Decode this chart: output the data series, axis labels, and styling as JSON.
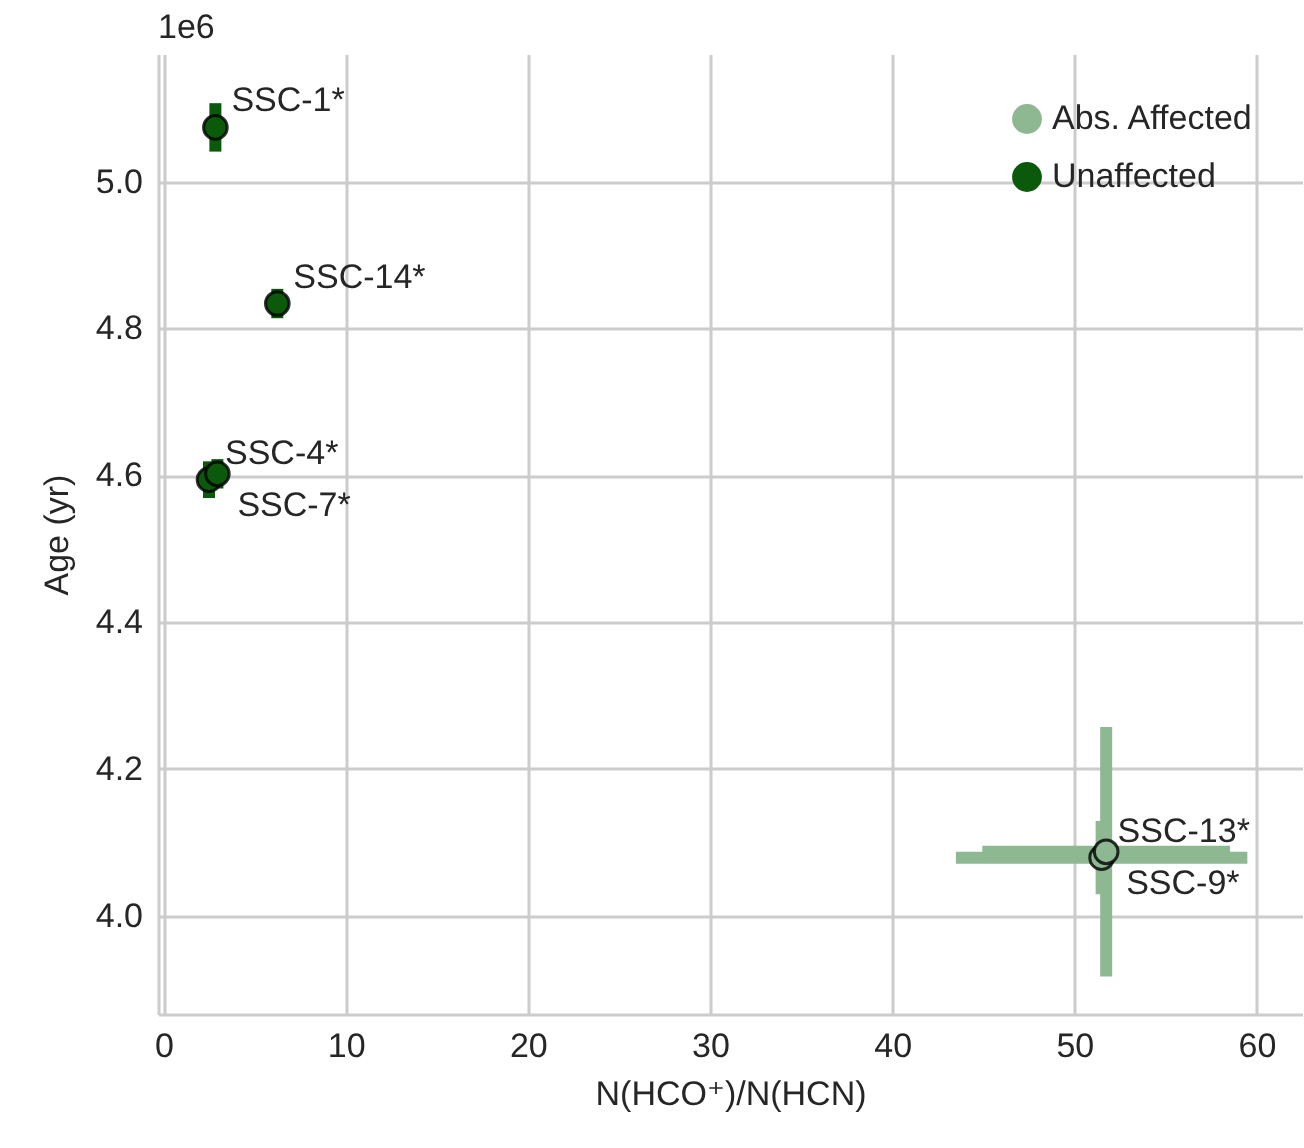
{
  "chart_data": {
    "type": "scatter",
    "xlabel": "N(HCO⁺)/N(HCN)",
    "ylabel": "Age (yr)",
    "xlim": [
      -0.3,
      62.5
    ],
    "ylim": [
      3.866,
      5.174
    ],
    "xticks": [
      0,
      10,
      20,
      30,
      40,
      50,
      60
    ],
    "yticks": [
      {
        "value": 4,
        "label": "4.0"
      },
      4.2,
      4.4,
      4.6,
      4.8,
      {
        "value": 5,
        "label": "5.0"
      }
    ],
    "grid": true,
    "legend": "top right",
    "marker": "circle",
    "series": [
      {
        "name": "Abs. Affected",
        "color": "#8db891",
        "x": [
          51.5,
          51.75
        ],
        "values": [
          4.079,
          4.087
        ],
        "errors": [
          0.05,
          0.17
        ],
        "xerrors": [
          8,
          6.8
        ]
      },
      {
        "name": "Unaffected",
        "color": "#0b5a0b",
        "x": [
          2.85,
          6.25,
          2.5,
          2.96
        ],
        "values": [
          5.074,
          4.834,
          4.594,
          4.602
        ],
        "errors": [
          0.033,
          0.02,
          0.025,
          0.02
        ]
      }
    ],
    "annotations": [
      "1e6",
      {
        "text": "SSC-1*",
        "x": 2.85,
        "y": 5.074
      },
      {
        "text": "SSC-14*",
        "x": 6.25,
        "y": 4.834
      },
      {
        "text": "SSC-4*",
        "x": 2.5,
        "y": 4.594
      },
      {
        "text": "SSC-7*",
        "x": 2.96,
        "y": 4.602
      },
      {
        "text": "SSC-13*",
        "x": 51.5,
        "y": 4.079
      },
      {
        "text": "SSC-9*",
        "x": 51.75,
        "y": 4.087
      }
    ]
  }
}
